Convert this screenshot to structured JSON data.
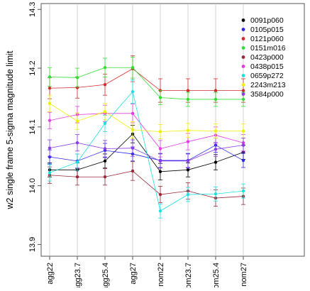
{
  "chart_data": {
    "type": "line",
    "ylabel": "w2 single frame 5-sigma magnitude limit",
    "xlabel": "",
    "categories": [
      "agg22",
      "agg23.7",
      "agg25.4",
      "agg27",
      "nom22",
      "nom23.7",
      "nom25.4",
      "nom27"
    ],
    "ylim": [
      13.88,
      14.31
    ],
    "yticks": [
      "13.9",
      "14.0",
      "14.1",
      "14.2",
      "14.3"
    ],
    "legend_position": "top-right",
    "series": [
      {
        "name": "0091p060",
        "color": "#000000",
        "values": [
          14.027,
          14.027,
          14.042,
          14.088,
          14.024,
          14.027,
          14.04,
          14.057
        ],
        "err": [
          0.012,
          0.012,
          0.012,
          0.015,
          0.014,
          0.012,
          0.013,
          0.012
        ]
      },
      {
        "name": "0105p015",
        "color": "#2a2ae6",
        "values": [
          14.049,
          14.042,
          14.06,
          14.054,
          14.043,
          14.043,
          14.069,
          14.043
        ],
        "err": [
          0.012,
          0.012,
          0.012,
          0.012,
          0.012,
          0.012,
          0.012,
          0.012
        ]
      },
      {
        "name": "0121p060",
        "color": "#d42a2a",
        "values": [
          14.166,
          14.167,
          14.172,
          14.199,
          14.162,
          14.162,
          14.162,
          14.162
        ],
        "err": [
          0.018,
          0.018,
          0.018,
          0.022,
          0.02,
          0.02,
          0.02,
          0.02
        ]
      },
      {
        "name": "0151m016",
        "color": "#33dd33",
        "values": [
          14.185,
          14.184,
          14.201,
          14.201,
          14.15,
          14.147,
          14.147,
          14.147
        ],
        "err": [
          0.016,
          0.016,
          0.016,
          0.018,
          0.012,
          0.012,
          0.012,
          0.012
        ]
      },
      {
        "name": "0423p000",
        "color": "#9a2a3a",
        "values": [
          14.018,
          14.015,
          14.015,
          14.025,
          13.985,
          13.991,
          13.979,
          13.982
        ],
        "err": [
          0.014,
          0.014,
          0.014,
          0.016,
          0.014,
          0.014,
          0.014,
          0.014
        ]
      },
      {
        "name": "0438p015",
        "color": "#e23ee2",
        "values": [
          14.111,
          14.121,
          14.123,
          14.123,
          14.063,
          14.075,
          14.086,
          14.073
        ],
        "err": [
          0.014,
          0.014,
          0.014,
          0.016,
          0.014,
          0.014,
          0.014,
          0.014
        ]
      },
      {
        "name": "0659p272",
        "color": "#1de0e0",
        "values": [
          14.022,
          14.04,
          14.106,
          14.16,
          13.957,
          13.985,
          13.986,
          13.991
        ],
        "err": [
          0.014,
          0.014,
          0.014,
          0.02,
          0.012,
          0.012,
          0.012,
          0.012
        ]
      },
      {
        "name": "2243m213",
        "color": "#f0f000",
        "values": [
          14.14,
          14.11,
          14.126,
          14.095,
          14.092,
          14.094,
          14.093,
          14.093
        ],
        "err": [
          0.014,
          0.014,
          0.014,
          0.014,
          0.012,
          0.012,
          0.012,
          0.012
        ]
      },
      {
        "name": "3584p000",
        "color": "#8a3ce6",
        "values": [
          14.064,
          14.073,
          14.063,
          14.064,
          14.042,
          14.042,
          14.062,
          14.069
        ],
        "err": [
          0.014,
          0.014,
          0.014,
          0.014,
          0.012,
          0.012,
          0.012,
          0.012
        ]
      }
    ]
  }
}
